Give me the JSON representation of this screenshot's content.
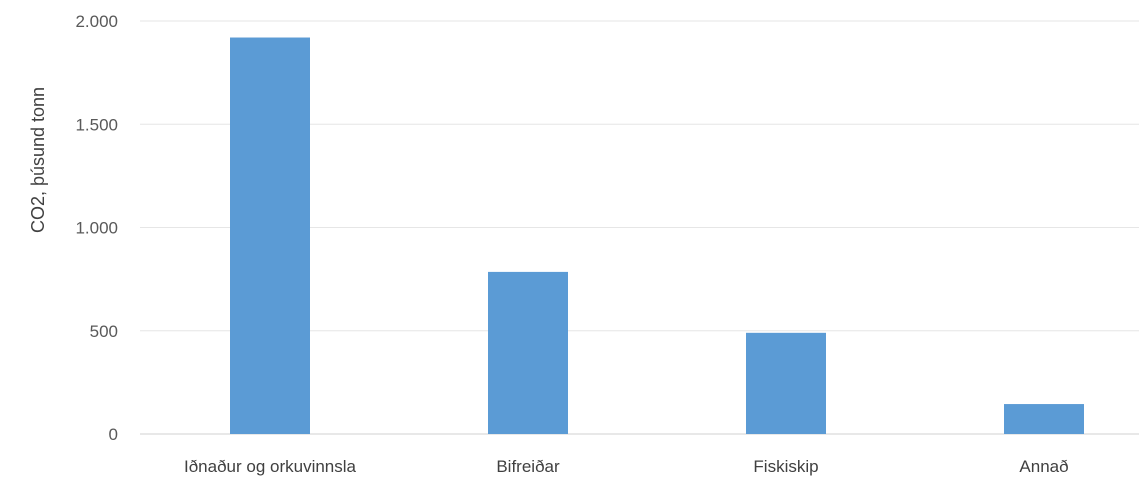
{
  "chart_data": {
    "type": "bar",
    "title": "",
    "xlabel": "",
    "ylabel": "CO2, þúsund tonn",
    "categories": [
      "Iðnaður og orkuvinnsla",
      "Bifreiðar",
      "Fiskiskip",
      "Annað"
    ],
    "values": [
      1920,
      785,
      490,
      145
    ],
    "ylim": [
      0,
      2000
    ],
    "yticks": [
      0,
      500,
      1000,
      1500,
      2000
    ],
    "ytick_labels": [
      "0",
      "500",
      "1.000",
      "1.500",
      "2.000"
    ],
    "grid": true,
    "legend": "none",
    "bar_color": "#5b9bd5"
  }
}
